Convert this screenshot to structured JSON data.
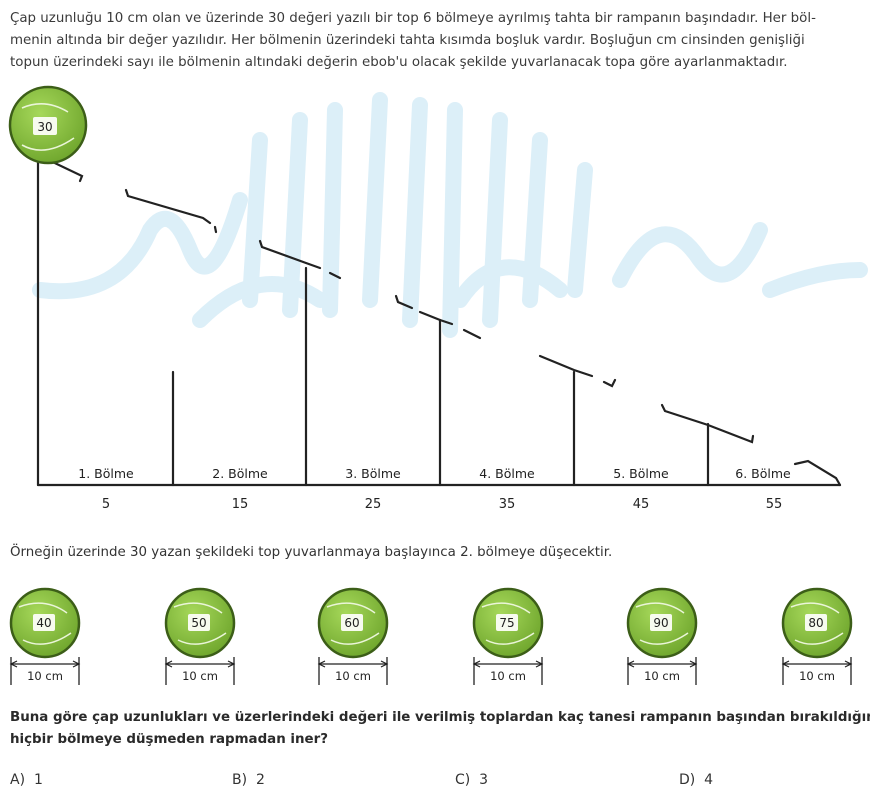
{
  "intro_lines": [
    "Çap uzunluğu 10 cm olan ve üzerinde 30 değeri yazılı bir top 6 bölmeye ayrılmış tahta bir rampanın başındadır. Her böl-",
    "menin altında bir değer yazılıdır. Her bölmenin üzerindeki tahta kısımda boşluk vardır. Boşluğun cm cinsinden genişliği",
    "topun üzerindeki sayı ile bölmenin altındaki değerin ebob'u olacak şekilde yuvarlanacak topa göre ayarlanmaktadır."
  ],
  "start_ball": "30",
  "sections": [
    {
      "label": "1. Bölme",
      "value": "5"
    },
    {
      "label": "2. Bölme",
      "value": "15"
    },
    {
      "label": "3. Bölme",
      "value": "25"
    },
    {
      "label": "4. Bölme",
      "value": "35"
    },
    {
      "label": "5. Bölme",
      "value": "45"
    },
    {
      "label": "6. Bölme",
      "value": "55"
    }
  ],
  "example": "Örneğin üzerinde 30 yazan şekildeki top yuvarlanmaya başlayınca 2. bölmeye düşecektir.",
  "balls": [
    {
      "value": "40",
      "width": "10 cm"
    },
    {
      "value": "50",
      "width": "10 cm"
    },
    {
      "value": "60",
      "width": "10 cm"
    },
    {
      "value": "75",
      "width": "10 cm"
    },
    {
      "value": "90",
      "width": "10 cm"
    },
    {
      "value": "80",
      "width": "10 cm"
    }
  ],
  "question_lines": [
    "Buna göre çap uzunlukları ve üzerlerindeki değeri ile verilmiş toplardan kaç tanesi rampanın başından bırakıldığında",
    "hiçbir bölmeye düşmeden rapmadan iner?"
  ],
  "options": [
    {
      "letter": "A)",
      "value": "1"
    },
    {
      "letter": "B)",
      "value": "2"
    },
    {
      "letter": "C)",
      "value": "3"
    },
    {
      "letter": "D)",
      "value": "4"
    }
  ],
  "colors": {
    "ball_fill": "#8bc53f",
    "ball_dark": "#5d8f25",
    "ball_outline": "#3c5e18",
    "watermark": "#d9eef7",
    "line": "#222222"
  }
}
